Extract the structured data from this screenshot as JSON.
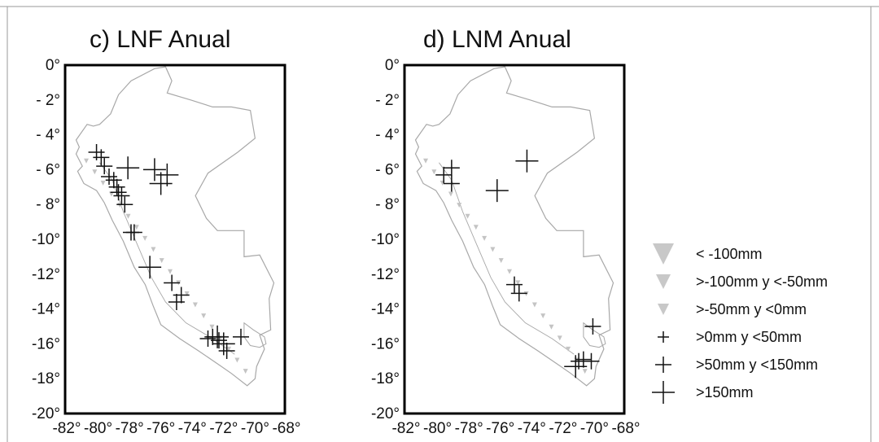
{
  "chart_data": [
    {
      "type": "scatter",
      "title": "c) LNF Anual",
      "xlim": [
        -82,
        -68
      ],
      "ylim": [
        -20,
        0
      ],
      "x_ticks": [
        "-82°",
        "-80°",
        "-78°",
        "-76°",
        "-74°",
        "-72°",
        "-70°",
        "-68°"
      ],
      "y_ticks": [
        "0°",
        "- 2°",
        "- 4°",
        "- 6°",
        "- 8°",
        "-10°",
        "-12°",
        "-14°",
        "-16°",
        "-18°",
        "-20°"
      ],
      "series": [
        {
          "name": ">50mm y <150mm",
          "points": [
            {
              "x": -80.0,
              "y": -5.0
            },
            {
              "x": -79.7,
              "y": -5.3
            },
            {
              "x": -79.5,
              "y": -5.8
            },
            {
              "x": -79.2,
              "y": -6.4
            },
            {
              "x": -78.9,
              "y": -6.6
            },
            {
              "x": -78.7,
              "y": -7.0
            },
            {
              "x": -78.6,
              "y": -7.3
            },
            {
              "x": -78.4,
              "y": -7.5
            },
            {
              "x": -78.2,
              "y": -8.0
            },
            {
              "x": -77.8,
              "y": -9.6
            },
            {
              "x": -77.6,
              "y": -9.6
            },
            {
              "x": -75.2,
              "y": -12.5
            },
            {
              "x": -74.9,
              "y": -13.6
            },
            {
              "x": -74.6,
              "y": -13.2
            },
            {
              "x": -72.9,
              "y": -15.7
            },
            {
              "x": -72.6,
              "y": -15.6
            },
            {
              "x": -72.2,
              "y": -15.8
            },
            {
              "x": -71.7,
              "y": -16.4
            },
            {
              "x": -70.8,
              "y": -15.6
            }
          ]
        },
        {
          "name": ">150mm",
          "points": [
            {
              "x": -78.0,
              "y": -5.9
            },
            {
              "x": -76.3,
              "y": -6.0
            },
            {
              "x": -75.9,
              "y": -6.8
            },
            {
              "x": -75.5,
              "y": -6.3
            },
            {
              "x": -76.6,
              "y": -11.6
            },
            {
              "x": -72.3,
              "y": -15.6
            },
            {
              "x": -71.9,
              "y": -16.0
            }
          ]
        }
      ]
    },
    {
      "type": "scatter",
      "title": "d) LNM Anual",
      "xlim": [
        -82,
        -68
      ],
      "ylim": [
        -20,
        0
      ],
      "x_ticks": [
        "-82°",
        "-80°",
        "-78°",
        "-76°",
        "-74°",
        "-72°",
        "-70°",
        "-68°"
      ],
      "y_ticks": [
        "0°",
        "- 2°",
        "- 4°",
        "- 6°",
        "- 8°",
        "-10°",
        "-12°",
        "-14°",
        "-16°",
        "-18°",
        "-20°"
      ],
      "series": [
        {
          "name": ">50mm y <150mm",
          "points": [
            {
              "x": -79.5,
              "y": -6.3
            },
            {
              "x": -79.0,
              "y": -5.9
            },
            {
              "x": -79.0,
              "y": -6.8
            },
            {
              "x": -75.0,
              "y": -12.6
            },
            {
              "x": -74.7,
              "y": -13.1
            },
            {
              "x": -70.0,
              "y": -15.0
            },
            {
              "x": -70.9,
              "y": -17.0
            },
            {
              "x": -70.6,
              "y": -16.9
            },
            {
              "x": -70.1,
              "y": -17.0
            }
          ]
        },
        {
          "name": ">150mm",
          "points": [
            {
              "x": -76.1,
              "y": -7.2
            },
            {
              "x": -74.2,
              "y": -5.5
            },
            {
              "x": -71.1,
              "y": -17.3
            }
          ]
        }
      ]
    }
  ],
  "legend": {
    "position": "right",
    "items": [
      {
        "label": "< -100mm",
        "symbol": "triangle",
        "size": "large",
        "color": "#c8c8c8"
      },
      {
        "label": ">-100mm y <-50mm",
        "symbol": "triangle",
        "size": "medium",
        "color": "#c8c8c8"
      },
      {
        "label": ">-50mm y <0mm",
        "symbol": "triangle",
        "size": "small",
        "color": "#c8c8c8"
      },
      {
        "label": ">0mm y <50mm",
        "symbol": "cross",
        "size": "small",
        "color": "#111111"
      },
      {
        "label": ">50mm y <150mm",
        "symbol": "cross",
        "size": "medium",
        "color": "#111111"
      },
      {
        "label": ">150mm",
        "symbol": "cross",
        "size": "large",
        "color": "#111111"
      }
    ]
  },
  "colors": {
    "outline": "#a8a8a8",
    "coast": "#c4c4c4",
    "marker": "#111111",
    "frame": "#000000"
  }
}
